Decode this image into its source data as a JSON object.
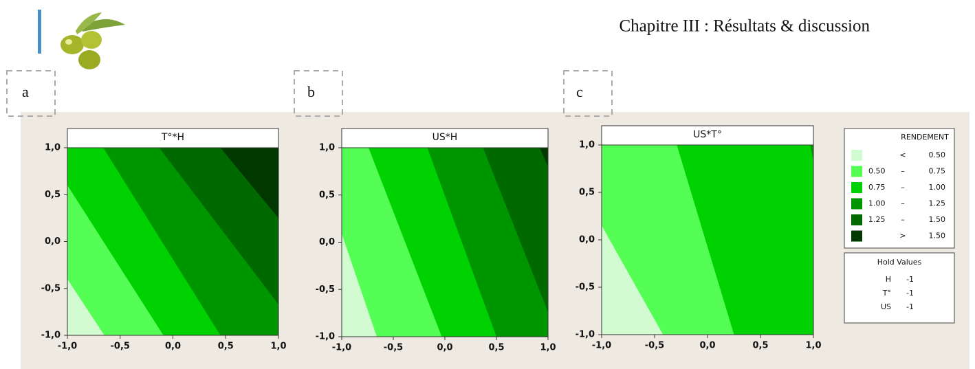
{
  "header": {
    "chapter": "Chapitre III : Résultats & discussion"
  },
  "legend": {
    "title": "RENDEMENT",
    "below": "<",
    "between": "–",
    "above": ">",
    "levels": [
      {
        "value": 0.5,
        "label": "0.50"
      },
      {
        "value": 0.75,
        "label": "0.75"
      },
      {
        "value": 1.0,
        "label": "1.00"
      },
      {
        "value": 1.25,
        "label": "1.25"
      },
      {
        "value": 1.5,
        "label": "1.50"
      }
    ],
    "colors": [
      "#d2fbd2",
      "#55fe55",
      "#00d100",
      "#009600",
      "#006a00",
      "#003800"
    ]
  },
  "hold_values": {
    "title": "Hold Values",
    "rows": [
      [
        "H",
        "-1"
      ],
      [
        "T°",
        "-1"
      ],
      [
        "US",
        "-1"
      ]
    ]
  },
  "chart_data": [
    {
      "type": "contour",
      "panel": "a",
      "title": "T°*H",
      "xlim": [
        -1,
        1
      ],
      "ylim": [
        -1,
        1
      ],
      "xticks": [
        {
          "value": -1,
          "label": "-1,0"
        },
        {
          "value": -0.5,
          "label": "-0,5"
        },
        {
          "value": 0,
          "label": "0,0"
        },
        {
          "value": 0.5,
          "label": "0,5"
        },
        {
          "value": 1,
          "label": "1,0"
        }
      ],
      "yticks": [
        {
          "value": -1,
          "label": "-1,0"
        },
        {
          "value": -0.5,
          "label": "-0,5"
        },
        {
          "value": 0,
          "label": "0,0"
        },
        {
          "value": 0.5,
          "label": "0,5"
        },
        {
          "value": 1,
          "label": "1,0"
        }
      ],
      "contours": [
        {
          "x": [
            -1,
            -0.65
          ],
          "y": [
            -0.4,
            -1
          ]
        },
        {
          "x": [
            -1,
            -0.09
          ],
          "y": [
            0.6,
            -1
          ]
        },
        {
          "x": [
            -0.66,
            0.45
          ],
          "y": [
            1,
            -1
          ]
        },
        {
          "x": [
            -0.13,
            1
          ],
          "y": [
            1,
            -0.67
          ]
        },
        {
          "x": [
            0.45,
            1
          ],
          "y": [
            1,
            0.25
          ]
        }
      ]
    },
    {
      "type": "contour",
      "panel": "b",
      "title": "US*H",
      "xlim": [
        -1,
        1
      ],
      "ylim": [
        -1,
        1
      ],
      "xticks": [
        {
          "value": -1,
          "label": "-1,0"
        },
        {
          "value": -0.5,
          "label": "-0,5"
        },
        {
          "value": 0,
          "label": "0,0"
        },
        {
          "value": 0.5,
          "label": "0,5"
        },
        {
          "value": 1,
          "label": "1,0"
        }
      ],
      "yticks": [
        {
          "value": -1,
          "label": "-1,0"
        },
        {
          "value": -0.5,
          "label": "-0,5"
        },
        {
          "value": 0,
          "label": "0,0"
        },
        {
          "value": 0.5,
          "label": "0,5"
        },
        {
          "value": 1,
          "label": "1,0"
        }
      ],
      "contours": [
        {
          "x": [
            -1,
            -0.66
          ],
          "y": [
            0.09,
            -1
          ]
        },
        {
          "x": [
            -0.74,
            -0.03
          ],
          "y": [
            1,
            -1
          ]
        },
        {
          "x": [
            -0.17,
            0.5
          ],
          "y": [
            1,
            -1
          ]
        },
        {
          "x": [
            0.37,
            1
          ],
          "y": [
            1,
            -0.74
          ]
        },
        {
          "x": [
            0.92,
            1
          ],
          "y": [
            1,
            0.8
          ]
        }
      ]
    },
    {
      "type": "contour",
      "panel": "c",
      "title": "US*T°",
      "xlim": [
        -1,
        1
      ],
      "ylim": [
        -1,
        1
      ],
      "xticks": [
        {
          "value": -1,
          "label": "-1,0"
        },
        {
          "value": -0.5,
          "label": "-0,5"
        },
        {
          "value": 0,
          "label": "0,0"
        },
        {
          "value": 0.5,
          "label": "0,5"
        },
        {
          "value": 1,
          "label": "1,0"
        }
      ],
      "yticks": [
        {
          "value": -1,
          "label": "-1,0"
        },
        {
          "value": -0.5,
          "label": "-0,5"
        },
        {
          "value": 0,
          "label": "0,0"
        },
        {
          "value": 0.5,
          "label": "0,5"
        },
        {
          "value": 1,
          "label": "1,0"
        }
      ],
      "contours": [
        {
          "x": [
            -1,
            -0.42
          ],
          "y": [
            0.15,
            -1
          ]
        },
        {
          "x": [
            -0.29,
            0.25
          ],
          "y": [
            1,
            -1
          ]
        },
        {
          "x": [
            0.97,
            1
          ],
          "y": [
            1,
            0.83
          ]
        }
      ]
    }
  ]
}
